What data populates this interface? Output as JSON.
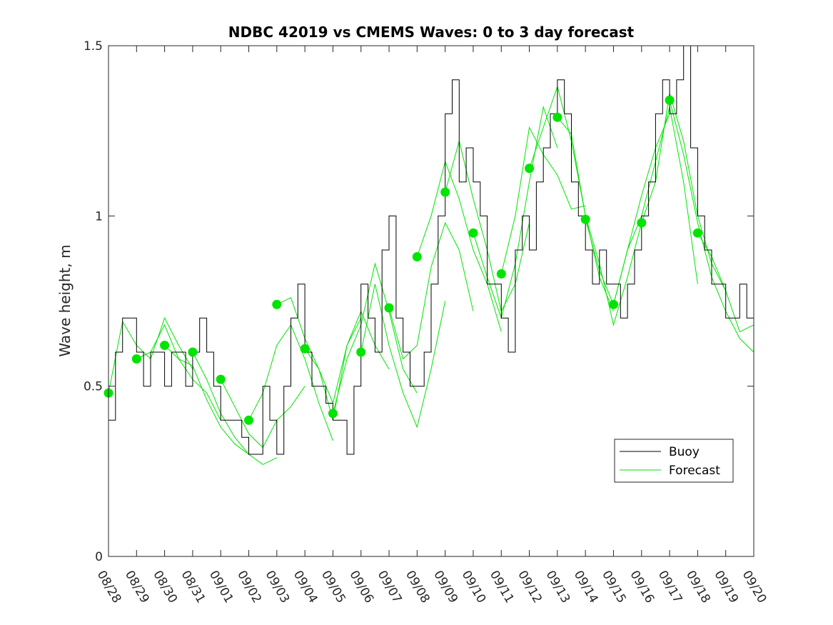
{
  "chart_data": {
    "type": "line",
    "title": "NDBC 42019 vs CMEMS Waves: 0 to 3 day forecast",
    "xlabel": "",
    "ylabel": "Wave height, m",
    "ylim": [
      0,
      1.5
    ],
    "yticks": [
      0,
      0.5,
      1,
      1.5
    ],
    "ytick_labels": [
      "0",
      "0.5",
      "1",
      "1.5"
    ],
    "xlim": [
      "2024-08-28",
      "2024-09-20"
    ],
    "xtick_labels": [
      "08/28",
      "08/29",
      "08/30",
      "08/31",
      "09/01",
      "09/02",
      "09/03",
      "09/04",
      "09/05",
      "09/06",
      "09/07",
      "09/08",
      "09/09",
      "09/10",
      "09/11",
      "09/12",
      "09/13",
      "09/14",
      "09/15",
      "09/16",
      "09/17",
      "09/18",
      "09/19",
      "09/20"
    ],
    "grid": false,
    "legend": {
      "position": "bottom-right",
      "entries": [
        {
          "label": "Buoy",
          "color": "#000000"
        },
        {
          "label": "Forecast",
          "color": "#00e400"
        }
      ]
    },
    "buoy": {
      "name": "Buoy",
      "color": "#000000",
      "x": [
        "2024-08-28T00:00",
        "2024-08-28T06:00",
        "2024-08-28T12:00",
        "2024-08-28T18:00",
        "2024-08-29T00:00",
        "2024-08-29T06:00",
        "2024-08-29T12:00",
        "2024-08-29T18:00",
        "2024-08-30T00:00",
        "2024-08-30T06:00",
        "2024-08-30T12:00",
        "2024-08-30T18:00",
        "2024-08-31T00:00",
        "2024-08-31T06:00",
        "2024-08-31T12:00",
        "2024-08-31T18:00",
        "2024-09-01T00:00",
        "2024-09-01T06:00",
        "2024-09-01T12:00",
        "2024-09-01T18:00",
        "2024-09-02T00:00",
        "2024-09-02T06:00",
        "2024-09-02T12:00",
        "2024-09-02T18:00",
        "2024-09-03T00:00",
        "2024-09-03T06:00",
        "2024-09-03T12:00",
        "2024-09-03T18:00",
        "2024-09-04T00:00",
        "2024-09-04T06:00",
        "2024-09-04T12:00",
        "2024-09-04T18:00",
        "2024-09-05T00:00",
        "2024-09-05T06:00",
        "2024-09-05T12:00",
        "2024-09-05T18:00",
        "2024-09-06T00:00",
        "2024-09-06T06:00",
        "2024-09-06T12:00",
        "2024-09-06T18:00",
        "2024-09-07T00:00",
        "2024-09-07T06:00",
        "2024-09-07T12:00",
        "2024-09-07T18:00",
        "2024-09-08T00:00",
        "2024-09-08T06:00",
        "2024-09-08T12:00",
        "2024-09-08T18:00",
        "2024-09-09T00:00",
        "2024-09-09T06:00",
        "2024-09-09T12:00",
        "2024-09-09T18:00",
        "2024-09-10T00:00",
        "2024-09-10T06:00",
        "2024-09-10T12:00",
        "2024-09-10T18:00",
        "2024-09-11T00:00",
        "2024-09-11T06:00",
        "2024-09-11T12:00",
        "2024-09-11T18:00",
        "2024-09-12T00:00",
        "2024-09-12T06:00",
        "2024-09-12T12:00",
        "2024-09-12T18:00",
        "2024-09-13T00:00",
        "2024-09-13T06:00",
        "2024-09-13T12:00",
        "2024-09-13T18:00",
        "2024-09-14T00:00",
        "2024-09-14T06:00",
        "2024-09-14T12:00",
        "2024-09-14T18:00",
        "2024-09-15T00:00",
        "2024-09-15T06:00",
        "2024-09-15T12:00",
        "2024-09-15T18:00",
        "2024-09-16T00:00",
        "2024-09-16T06:00",
        "2024-09-16T12:00",
        "2024-09-16T18:00",
        "2024-09-17T00:00",
        "2024-09-17T06:00",
        "2024-09-17T12:00",
        "2024-09-17T18:00",
        "2024-09-18T00:00",
        "2024-09-18T06:00",
        "2024-09-18T12:00",
        "2024-09-18T18:00",
        "2024-09-19T00:00",
        "2024-09-19T06:00",
        "2024-09-19T12:00",
        "2024-09-19T18:00"
      ],
      "values": [
        0.4,
        0.6,
        0.7,
        0.7,
        0.6,
        0.5,
        0.6,
        0.6,
        0.5,
        0.6,
        0.6,
        0.5,
        0.6,
        0.7,
        0.6,
        0.5,
        0.4,
        0.4,
        0.4,
        0.35,
        0.3,
        0.3,
        0.5,
        0.4,
        0.3,
        0.5,
        0.7,
        0.8,
        0.6,
        0.5,
        0.5,
        0.45,
        0.4,
        0.4,
        0.3,
        0.5,
        0.8,
        0.7,
        0.6,
        0.9,
        1.0,
        0.7,
        0.6,
        0.5,
        0.5,
        0.6,
        0.8,
        1.0,
        1.3,
        1.4,
        1.1,
        1.2,
        1.1,
        1.0,
        0.8,
        0.8,
        0.7,
        0.6,
        0.9,
        1.0,
        0.9,
        1.1,
        1.2,
        1.3,
        1.4,
        1.3,
        1.1,
        1.0,
        0.9,
        0.8,
        0.9,
        0.8,
        0.8,
        0.7,
        0.8,
        0.9,
        1.0,
        1.1,
        1.3,
        1.4,
        1.3,
        1.4,
        1.5,
        1.2,
        1.0,
        0.9,
        0.8,
        0.8,
        0.7,
        0.7,
        0.8,
        0.7
      ]
    },
    "forecast_series": [
      {
        "color": "#00e400",
        "x": [
          "2024-08-28T00:00",
          "2024-08-28T12:00",
          "2024-08-29T00:00",
          "2024-08-29T12:00",
          "2024-08-30T00:00",
          "2024-08-30T12:00",
          "2024-08-31T00:00"
        ],
        "values": [
          0.48,
          0.69,
          0.62,
          0.58,
          0.7,
          0.62,
          0.55
        ]
      },
      {
        "color": "#00e400",
        "x": [
          "2024-08-29T00:00",
          "2024-08-29T12:00",
          "2024-08-30T00:00",
          "2024-08-30T12:00",
          "2024-08-31T00:00",
          "2024-08-31T12:00",
          "2024-09-01T00:00"
        ],
        "values": [
          0.58,
          0.6,
          0.68,
          0.58,
          0.52,
          0.48,
          0.4
        ]
      },
      {
        "color": "#00e400",
        "x": [
          "2024-08-30T00:00",
          "2024-08-30T12:00",
          "2024-08-31T00:00",
          "2024-08-31T12:00",
          "2024-09-01T00:00",
          "2024-09-01T12:00",
          "2024-09-02T00:00"
        ],
        "values": [
          0.62,
          0.58,
          0.56,
          0.46,
          0.38,
          0.33,
          0.3
        ]
      },
      {
        "color": "#00e400",
        "x": [
          "2024-08-31T00:00",
          "2024-08-31T12:00",
          "2024-09-01T00:00",
          "2024-09-01T12:00",
          "2024-09-02T00:00",
          "2024-09-02T12:00",
          "2024-09-03T00:00"
        ],
        "values": [
          0.6,
          0.52,
          0.42,
          0.35,
          0.3,
          0.27,
          0.29
        ]
      },
      {
        "color": "#00e400",
        "x": [
          "2024-09-01T00:00",
          "2024-09-01T12:00",
          "2024-09-02T00:00",
          "2024-09-02T12:00",
          "2024-09-03T00:00",
          "2024-09-03T12:00",
          "2024-09-04T00:00"
        ],
        "values": [
          0.52,
          0.44,
          0.36,
          0.32,
          0.4,
          0.44,
          0.5
        ]
      },
      {
        "color": "#00e400",
        "x": [
          "2024-09-02T00:00",
          "2024-09-02T12:00",
          "2024-09-03T00:00",
          "2024-09-03T12:00",
          "2024-09-04T00:00",
          "2024-09-04T12:00",
          "2024-09-05T00:00"
        ],
        "values": [
          0.4,
          0.48,
          0.62,
          0.68,
          0.58,
          0.45,
          0.34
        ]
      },
      {
        "color": "#00e400",
        "x": [
          "2024-09-03T00:00",
          "2024-09-03T12:00",
          "2024-09-04T00:00",
          "2024-09-04T12:00",
          "2024-09-05T00:00",
          "2024-09-05T12:00",
          "2024-09-06T00:00"
        ],
        "values": [
          0.74,
          0.76,
          0.64,
          0.55,
          0.45,
          0.62,
          0.7
        ]
      },
      {
        "color": "#00e400",
        "x": [
          "2024-09-04T00:00",
          "2024-09-04T12:00",
          "2024-09-05T00:00",
          "2024-09-05T12:00",
          "2024-09-06T00:00",
          "2024-09-06T12:00",
          "2024-09-07T00:00"
        ],
        "values": [
          0.61,
          0.55,
          0.4,
          0.62,
          0.72,
          0.62,
          0.55
        ]
      },
      {
        "color": "#00e400",
        "x": [
          "2024-09-05T00:00",
          "2024-09-05T12:00",
          "2024-09-06T00:00",
          "2024-09-06T12:00",
          "2024-09-07T00:00",
          "2024-09-07T12:00",
          "2024-09-08T00:00"
        ],
        "values": [
          0.42,
          0.58,
          0.68,
          0.86,
          0.72,
          0.55,
          0.48
        ]
      },
      {
        "color": "#00e400",
        "x": [
          "2024-09-06T00:00",
          "2024-09-06T12:00",
          "2024-09-07T00:00",
          "2024-09-07T12:00",
          "2024-09-08T00:00",
          "2024-09-08T12:00",
          "2024-09-09T00:00"
        ],
        "values": [
          0.6,
          0.8,
          0.62,
          0.48,
          0.38,
          0.55,
          0.75
        ]
      },
      {
        "color": "#00e400",
        "x": [
          "2024-09-07T00:00",
          "2024-09-07T12:00",
          "2024-09-08T00:00",
          "2024-09-08T12:00",
          "2024-09-09T00:00",
          "2024-09-09T12:00",
          "2024-09-10T00:00"
        ],
        "values": [
          0.73,
          0.58,
          0.62,
          0.85,
          0.98,
          0.9,
          0.72
        ]
      },
      {
        "color": "#00e400",
        "x": [
          "2024-09-08T00:00",
          "2024-09-08T12:00",
          "2024-09-09T00:00",
          "2024-09-09T12:00",
          "2024-09-10T00:00",
          "2024-09-10T12:00",
          "2024-09-11T00:00"
        ],
        "values": [
          0.88,
          1.0,
          1.16,
          1.05,
          0.9,
          0.8,
          0.66
        ]
      },
      {
        "color": "#00e400",
        "x": [
          "2024-09-09T00:00",
          "2024-09-09T12:00",
          "2024-09-10T00:00",
          "2024-09-10T12:00",
          "2024-09-11T00:00",
          "2024-09-11T12:00",
          "2024-09-12T00:00"
        ],
        "values": [
          1.07,
          1.22,
          1.05,
          0.9,
          0.72,
          0.8,
          0.98
        ]
      },
      {
        "color": "#00e400",
        "x": [
          "2024-09-10T00:00",
          "2024-09-10T12:00",
          "2024-09-11T00:00",
          "2024-09-11T12:00",
          "2024-09-12T00:00",
          "2024-09-12T12:00",
          "2024-09-13T00:00"
        ],
        "values": [
          0.95,
          0.82,
          0.7,
          0.86,
          1.1,
          1.32,
          1.2
        ]
      },
      {
        "color": "#00e400",
        "x": [
          "2024-09-11T00:00",
          "2024-09-11T12:00",
          "2024-09-12T00:00",
          "2024-09-12T12:00",
          "2024-09-13T00:00",
          "2024-09-13T12:00",
          "2024-09-14T00:00"
        ],
        "values": [
          0.83,
          1.0,
          1.26,
          1.18,
          1.12,
          1.02,
          1.03
        ]
      },
      {
        "color": "#00e400",
        "x": [
          "2024-09-12T00:00",
          "2024-09-12T12:00",
          "2024-09-13T00:00",
          "2024-09-13T12:00",
          "2024-09-14T00:00",
          "2024-09-14T12:00",
          "2024-09-15T00:00"
        ],
        "values": [
          1.14,
          1.26,
          1.38,
          1.22,
          1.0,
          0.82,
          0.72
        ]
      },
      {
        "color": "#00e400",
        "x": [
          "2024-09-13T00:00",
          "2024-09-13T12:00",
          "2024-09-14T00:00",
          "2024-09-14T12:00",
          "2024-09-15T00:00",
          "2024-09-15T12:00",
          "2024-09-16T00:00"
        ],
        "values": [
          1.29,
          1.24,
          1.0,
          0.86,
          0.68,
          0.82,
          0.98
        ]
      },
      {
        "color": "#00e400",
        "x": [
          "2024-09-14T00:00",
          "2024-09-14T12:00",
          "2024-09-15T00:00",
          "2024-09-15T12:00",
          "2024-09-16T00:00",
          "2024-09-16T12:00",
          "2024-09-17T00:00"
        ],
        "values": [
          0.99,
          0.84,
          0.74,
          0.9,
          1.06,
          1.2,
          1.3
        ]
      },
      {
        "color": "#00e400",
        "x": [
          "2024-09-15T00:00",
          "2024-09-15T12:00",
          "2024-09-16T00:00",
          "2024-09-16T12:00",
          "2024-09-17T00:00",
          "2024-09-17T12:00",
          "2024-09-18T00:00"
        ],
        "values": [
          0.74,
          0.9,
          1.0,
          1.16,
          1.32,
          1.1,
          0.8
        ]
      },
      {
        "color": "#00e400",
        "x": [
          "2024-09-16T00:00",
          "2024-09-16T12:00",
          "2024-09-17T00:00",
          "2024-09-17T12:00",
          "2024-09-18T00:00",
          "2024-09-18T12:00",
          "2024-09-19T00:00"
        ],
        "values": [
          0.98,
          1.1,
          1.36,
          1.22,
          1.0,
          0.86,
          0.78
        ]
      },
      {
        "color": "#00e400",
        "x": [
          "2024-09-17T00:00",
          "2024-09-17T12:00",
          "2024-09-18T00:00",
          "2024-09-18T12:00",
          "2024-09-19T00:00",
          "2024-09-19T12:00",
          "2024-09-20T00:00"
        ],
        "values": [
          1.34,
          1.18,
          0.98,
          0.82,
          0.72,
          0.64,
          0.6
        ]
      },
      {
        "color": "#00e400",
        "x": [
          "2024-09-18T00:00",
          "2024-09-18T12:00",
          "2024-09-19T00:00",
          "2024-09-19T12:00",
          "2024-09-20T00:00"
        ],
        "values": [
          0.95,
          0.88,
          0.78,
          0.66,
          0.68
        ]
      }
    ],
    "initialization_markers": {
      "color": "#00e400",
      "x": [
        "2024-08-28",
        "2024-08-29",
        "2024-08-30",
        "2024-08-31",
        "2024-09-01",
        "2024-09-02",
        "2024-09-03",
        "2024-09-04",
        "2024-09-05",
        "2024-09-06",
        "2024-09-07",
        "2024-09-08",
        "2024-09-09",
        "2024-09-10",
        "2024-09-11",
        "2024-09-12",
        "2024-09-13",
        "2024-09-14",
        "2024-09-15",
        "2024-09-16",
        "2024-09-17",
        "2024-09-18"
      ],
      "values": [
        0.48,
        0.58,
        0.62,
        0.6,
        0.52,
        0.4,
        0.74,
        0.61,
        0.42,
        0.6,
        0.73,
        0.88,
        1.07,
        0.95,
        0.83,
        1.14,
        1.29,
        0.99,
        0.74,
        0.98,
        1.34,
        0.95
      ]
    }
  }
}
